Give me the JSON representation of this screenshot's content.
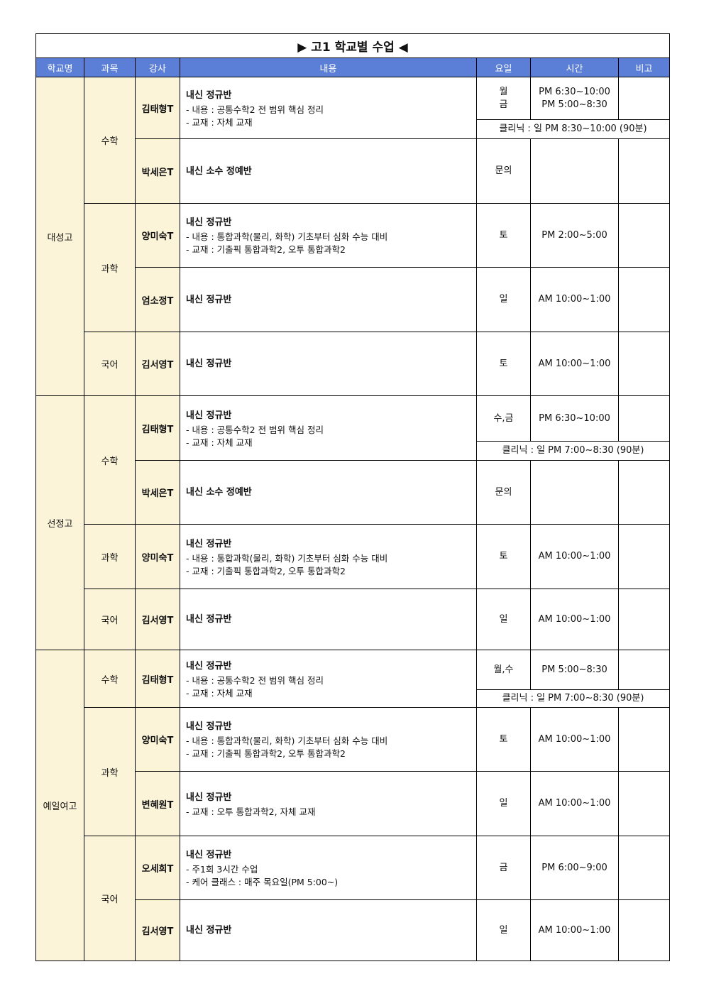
{
  "title": "고1 학교별 수업",
  "title_icons": [
    "triangle-right-icon",
    "triangle-left-icon"
  ],
  "colors": {
    "header_bg": "#5b7fd6",
    "label_bg": "#fcf4d9"
  },
  "headers": [
    "학교명",
    "과목",
    "강사",
    "내용",
    "요일",
    "시간",
    "비고"
  ],
  "schools": [
    {
      "name": "대성고",
      "subjects": [
        {
          "name": "수학",
          "classes": [
            {
              "teacher": "김태형T",
              "title": "내신 정규반",
              "details": [
                "-  내용 : 공통수학2 전 범위 핵심 정리",
                "-  교재 : 자체 교재"
              ],
              "day": "월\n금",
              "time": "PM 6:30~10:00\nPM 5:00~8:30",
              "clinic": "클리닉 : 일 PM 8:30~10:00 (90분)"
            },
            {
              "teacher": "박세은T",
              "title": "내신 소수 정예반",
              "details": [],
              "day": "문의",
              "time": ""
            }
          ]
        },
        {
          "name": "과학",
          "classes": [
            {
              "teacher": "양미숙T",
              "title": "내신 정규반",
              "details": [
                "-  내용 : 통합과학(물리, 화학) 기초부터 심화 수능 대비",
                "-  교재 : 기출픽 통합과학2, 오투 통합과학2"
              ],
              "day": "토",
              "time": "PM 2:00~5:00"
            },
            {
              "teacher": "엄소정T",
              "title": "내신 정규반",
              "details": [],
              "day": "일",
              "time": "AM 10:00~1:00"
            }
          ]
        },
        {
          "name": "국어",
          "classes": [
            {
              "teacher": "김서영T",
              "title": "내신 정규반",
              "details": [],
              "day": "토",
              "time": "AM 10:00~1:00"
            }
          ]
        }
      ]
    },
    {
      "name": "선정고",
      "subjects": [
        {
          "name": "수학",
          "classes": [
            {
              "teacher": "김태형T",
              "title": "내신 정규반",
              "details": [
                "-  내용 : 공통수학2 전 범위 핵심 정리",
                "-  교재 : 자체 교재"
              ],
              "day": "수,금",
              "time": "PM 6:30~10:00",
              "clinic": "클리닉 : 일 PM 7:00~8:30 (90분)"
            },
            {
              "teacher": "박세은T",
              "title": "내신 소수 정예반",
              "details": [],
              "day": "문의",
              "time": ""
            }
          ]
        },
        {
          "name": "과학",
          "classes": [
            {
              "teacher": "양미숙T",
              "title": "내신 정규반",
              "details": [
                "-  내용 : 통합과학(물리, 화학) 기초부터 심화 수능 대비",
                "-  교재 : 기출픽 통합과학2, 오투 통합과학2"
              ],
              "day": "토",
              "time": "AM 10:00~1:00"
            }
          ]
        },
        {
          "name": "국어",
          "classes": [
            {
              "teacher": "김서영T",
              "title": "내신 정규반",
              "details": [],
              "day": "일",
              "time": "AM 10:00~1:00"
            }
          ]
        }
      ]
    },
    {
      "name": "예일여고",
      "subjects": [
        {
          "name": "수학",
          "classes": [
            {
              "teacher": "김태형T",
              "title": "내신 정규반",
              "details": [
                "-  내용 : 공통수학2 전 범위 핵심 정리",
                "-  교재 : 자체 교재"
              ],
              "day": "월,수",
              "time": "PM 5:00~8:30",
              "clinic": "클리닉 : 일 PM 7:00~8:30 (90분)"
            }
          ]
        },
        {
          "name": "과학",
          "classes": [
            {
              "teacher": "양미숙T",
              "title": "내신 정규반",
              "details": [
                "-  내용 : 통합과학(물리, 화학) 기초부터 심화 수능 대비",
                "-  교재 : 기출픽 통합과학2, 오투 통합과학2"
              ],
              "day": "토",
              "time": "AM 10:00~1:00"
            },
            {
              "teacher": "변혜원T",
              "title": "내신 정규반",
              "details": [
                "- 교재 : 오투 통합과학2, 자체 교재"
              ],
              "day": "일",
              "time": "AM 10:00~1:00"
            }
          ]
        },
        {
          "name": "국어",
          "classes": [
            {
              "teacher": "오세희T",
              "title": "내신 정규반",
              "details": [
                "- 주1회 3시간 수업",
                "- 케어 클래스 : 매주 목요일(PM 5:00~)"
              ],
              "day": "금",
              "time": "PM 6:00~9:00"
            },
            {
              "teacher": "김서영T",
              "title": "내신 정규반",
              "details": [],
              "day": "일",
              "time": "AM 10:00~1:00"
            }
          ]
        }
      ]
    }
  ]
}
